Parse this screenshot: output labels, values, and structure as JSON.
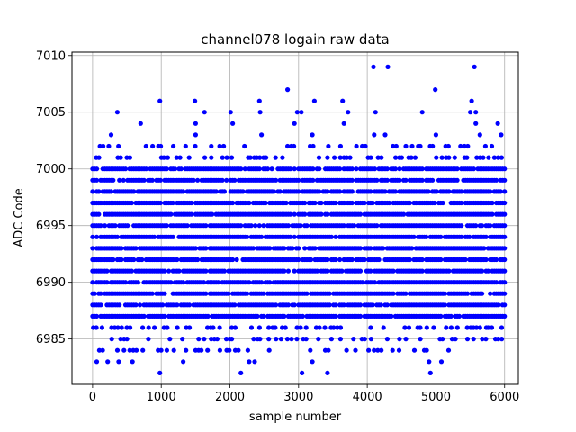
{
  "chart_data": {
    "type": "scatter",
    "title": "channel078 logain raw data",
    "xlabel": "sample number",
    "ylabel": "ADC Code",
    "xlim": [
      -300,
      6200
    ],
    "ylim": [
      6981,
      7010.3
    ],
    "x_ticks": [
      0,
      1000,
      2000,
      3000,
      4000,
      5000,
      6000
    ],
    "x_tick_labels": [
      "0",
      "1000",
      "2000",
      "3000",
      "4000",
      "5000",
      "6000"
    ],
    "y_ticks": [
      6985,
      6990,
      6995,
      7000,
      7005,
      7010
    ],
    "y_tick_labels": [
      "6985",
      "6990",
      "6995",
      "7000",
      "7005",
      "7010"
    ],
    "grid": true,
    "marker_color": "#0000ff",
    "sample_count": 6000,
    "sample_step": 30,
    "dense_rows": [
      6987,
      6988,
      6989,
      6990,
      6991,
      6992,
      6993,
      6994,
      6995,
      6996,
      6997,
      6998,
      6999,
      7000
    ],
    "sparse_rows": [
      6984,
      6985,
      6986,
      7001,
      7002
    ],
    "outliers": [
      {
        "x": 980,
        "y": 6982
      },
      {
        "x": 2160,
        "y": 6982
      },
      {
        "x": 3050,
        "y": 6982
      },
      {
        "x": 3420,
        "y": 6982
      },
      {
        "x": 4920,
        "y": 6982
      },
      {
        "x": 60,
        "y": 6983
      },
      {
        "x": 220,
        "y": 6983
      },
      {
        "x": 380,
        "y": 6983
      },
      {
        "x": 580,
        "y": 6983
      },
      {
        "x": 1320,
        "y": 6983
      },
      {
        "x": 2280,
        "y": 6983
      },
      {
        "x": 2360,
        "y": 6983
      },
      {
        "x": 3200,
        "y": 6983
      },
      {
        "x": 4900,
        "y": 6983
      },
      {
        "x": 5080,
        "y": 6983
      },
      {
        "x": 270,
        "y": 7003
      },
      {
        "x": 1500,
        "y": 7003
      },
      {
        "x": 2460,
        "y": 7003
      },
      {
        "x": 3200,
        "y": 7003
      },
      {
        "x": 4100,
        "y": 7003
      },
      {
        "x": 4260,
        "y": 7003
      },
      {
        "x": 5000,
        "y": 7003
      },
      {
        "x": 5640,
        "y": 7003
      },
      {
        "x": 5950,
        "y": 7003
      },
      {
        "x": 700,
        "y": 7004
      },
      {
        "x": 1500,
        "y": 7004
      },
      {
        "x": 2040,
        "y": 7004
      },
      {
        "x": 2940,
        "y": 7004
      },
      {
        "x": 3660,
        "y": 7004
      },
      {
        "x": 5580,
        "y": 7004
      },
      {
        "x": 5900,
        "y": 7004
      },
      {
        "x": 360,
        "y": 7005
      },
      {
        "x": 1630,
        "y": 7005
      },
      {
        "x": 2010,
        "y": 7005
      },
      {
        "x": 2440,
        "y": 7005
      },
      {
        "x": 2980,
        "y": 7005
      },
      {
        "x": 3040,
        "y": 7005
      },
      {
        "x": 3720,
        "y": 7005
      },
      {
        "x": 4120,
        "y": 7005
      },
      {
        "x": 4800,
        "y": 7005
      },
      {
        "x": 5500,
        "y": 7005
      },
      {
        "x": 5580,
        "y": 7005
      },
      {
        "x": 980,
        "y": 7006
      },
      {
        "x": 1490,
        "y": 7006
      },
      {
        "x": 2430,
        "y": 7006
      },
      {
        "x": 3230,
        "y": 7006
      },
      {
        "x": 3640,
        "y": 7006
      },
      {
        "x": 5520,
        "y": 7006
      },
      {
        "x": 2840,
        "y": 7007
      },
      {
        "x": 4990,
        "y": 7007
      },
      {
        "x": 4090,
        "y": 7009
      },
      {
        "x": 4300,
        "y": 7009
      },
      {
        "x": 5560,
        "y": 7009
      }
    ]
  }
}
